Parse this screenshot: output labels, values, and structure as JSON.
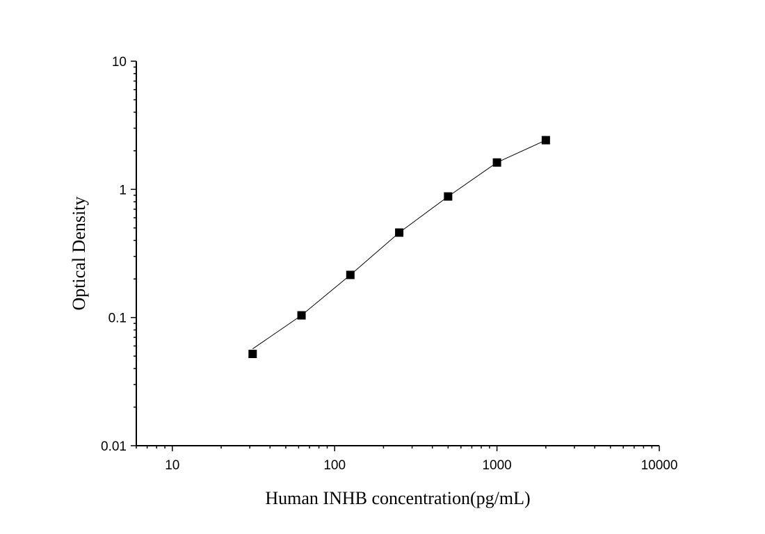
{
  "chart_data": {
    "type": "scatter",
    "xlabel": "Human INHB concentration(pg/mL)",
    "ylabel": "Optical Density",
    "x_scale": "log",
    "y_scale": "log",
    "xlim": [
      6,
      10000
    ],
    "ylim": [
      0.01,
      10
    ],
    "x_ticks": [
      {
        "value": 10,
        "label": "10"
      },
      {
        "value": 100,
        "label": "100"
      },
      {
        "value": 1000,
        "label": "1000"
      },
      {
        "value": 10000,
        "label": "10000"
      }
    ],
    "y_ticks": [
      {
        "value": 0.01,
        "label": "0.01"
      },
      {
        "value": 0.1,
        "label": "0.1"
      },
      {
        "value": 1,
        "label": "1"
      },
      {
        "value": 10,
        "label": "10"
      }
    ],
    "grid": false,
    "series": [
      {
        "marker": "square",
        "color": "#000000",
        "points": [
          {
            "x": 31.25,
            "y": 0.052
          },
          {
            "x": 62.5,
            "y": 0.104
          },
          {
            "x": 125,
            "y": 0.215
          },
          {
            "x": 250,
            "y": 0.46
          },
          {
            "x": 500,
            "y": 0.88
          },
          {
            "x": 1000,
            "y": 1.62
          },
          {
            "x": 2000,
            "y": 2.42
          }
        ],
        "fit_line": [
          {
            "x": 31.25,
            "y": 0.057
          },
          {
            "x": 62.5,
            "y": 0.104
          },
          {
            "x": 125,
            "y": 0.215
          },
          {
            "x": 250,
            "y": 0.46
          },
          {
            "x": 500,
            "y": 0.88
          },
          {
            "x": 1000,
            "y": 1.62
          },
          {
            "x": 2000,
            "y": 2.42
          }
        ]
      }
    ]
  }
}
